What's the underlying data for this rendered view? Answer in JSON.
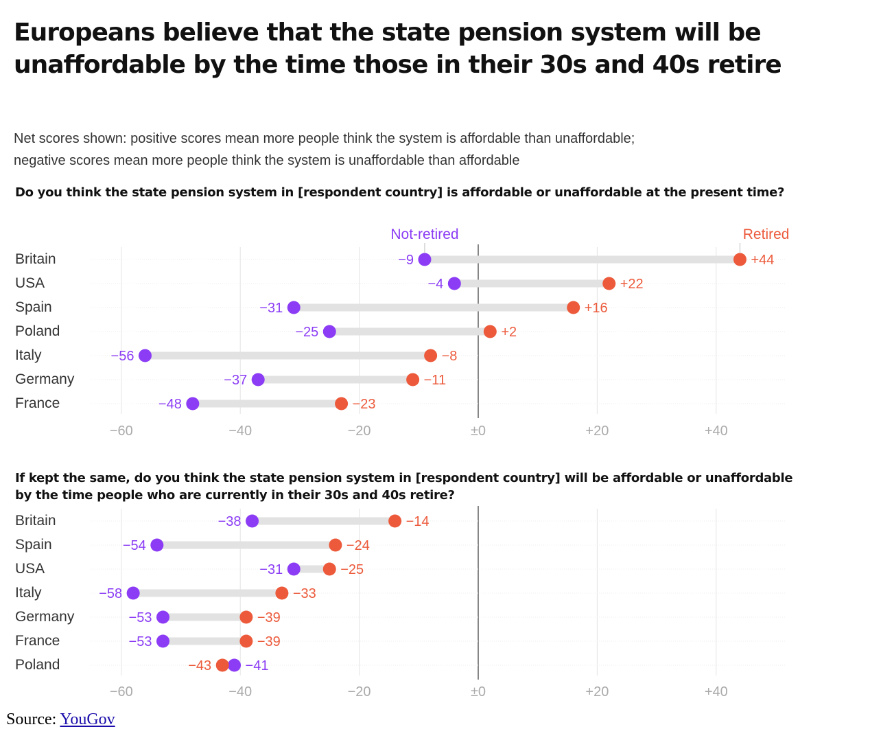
{
  "title": "Europeans believe that the state pension system will be unaffordable by the time those in their 30s and 40s retire",
  "subtitle_lines": [
    "Net scores shown: positive scores mean more people think the system is affordable than unaffordable;",
    "negative scores mean more people think the system is unaffordable than affordable"
  ],
  "colors": {
    "not_retired": "#8b3cf4",
    "retired": "#ec5a3b",
    "track": "#e2e2e2",
    "grid": "#e4e4e4",
    "zero_line": "#444444",
    "tick": "#aaaaaa"
  },
  "source": {
    "label": "Source:",
    "link": "YouGov"
  },
  "chart_data": [
    {
      "type": "dumbbell",
      "title": "Do you think the state pension system in [respondent country] is affordable or unaffordable at the present time?",
      "x_ticks": [
        -60,
        -40,
        -20,
        0,
        20,
        40
      ],
      "x_tick_labels": [
        "−60",
        "−40",
        "−20",
        "±0",
        "+20",
        "+40"
      ],
      "xlim": [
        -62,
        52
      ],
      "legend": {
        "not_retired": "Not-retired",
        "retired": "Retired"
      },
      "categories": [
        "Britain",
        "USA",
        "Spain",
        "Poland",
        "Italy",
        "Germany",
        "France"
      ],
      "series": [
        {
          "name": "Not-retired",
          "values": [
            -9,
            -4,
            -31,
            -25,
            -56,
            -37,
            -48
          ],
          "labels": [
            "−9",
            "−4",
            "−31",
            "−25",
            "−56",
            "−37",
            "−48"
          ]
        },
        {
          "name": "Retired",
          "values": [
            44,
            22,
            16,
            2,
            -8,
            -11,
            -23
          ],
          "labels": [
            "+44",
            "+22",
            "+16",
            "+2",
            "−8",
            "−11",
            "−23"
          ]
        }
      ]
    },
    {
      "type": "dumbbell",
      "title": "If kept the same, do you think the state pension system in [respondent country] will be affordable or unaffordable by the time people who are currently in their 30s and 40s retire?",
      "x_ticks": [
        -60,
        -40,
        -20,
        0,
        20,
        40
      ],
      "x_tick_labels": [
        "−60",
        "−40",
        "−20",
        "±0",
        "+20",
        "+40"
      ],
      "xlim": [
        -62,
        52
      ],
      "categories": [
        "Britain",
        "Spain",
        "USA",
        "Italy",
        "Germany",
        "France",
        "Poland"
      ],
      "series": [
        {
          "name": "Not-retired",
          "values": [
            -38,
            -54,
            -31,
            -58,
            -53,
            -53,
            -41
          ],
          "labels": [
            "−38",
            "−54",
            "−31",
            "−58",
            "−53",
            "−53",
            "−41"
          ]
        },
        {
          "name": "Retired",
          "values": [
            -14,
            -24,
            -25,
            -33,
            -39,
            -39,
            -43
          ],
          "labels": [
            "−14",
            "−24",
            "−25",
            "−33",
            "−39",
            "−39",
            "−43"
          ]
        }
      ]
    }
  ]
}
